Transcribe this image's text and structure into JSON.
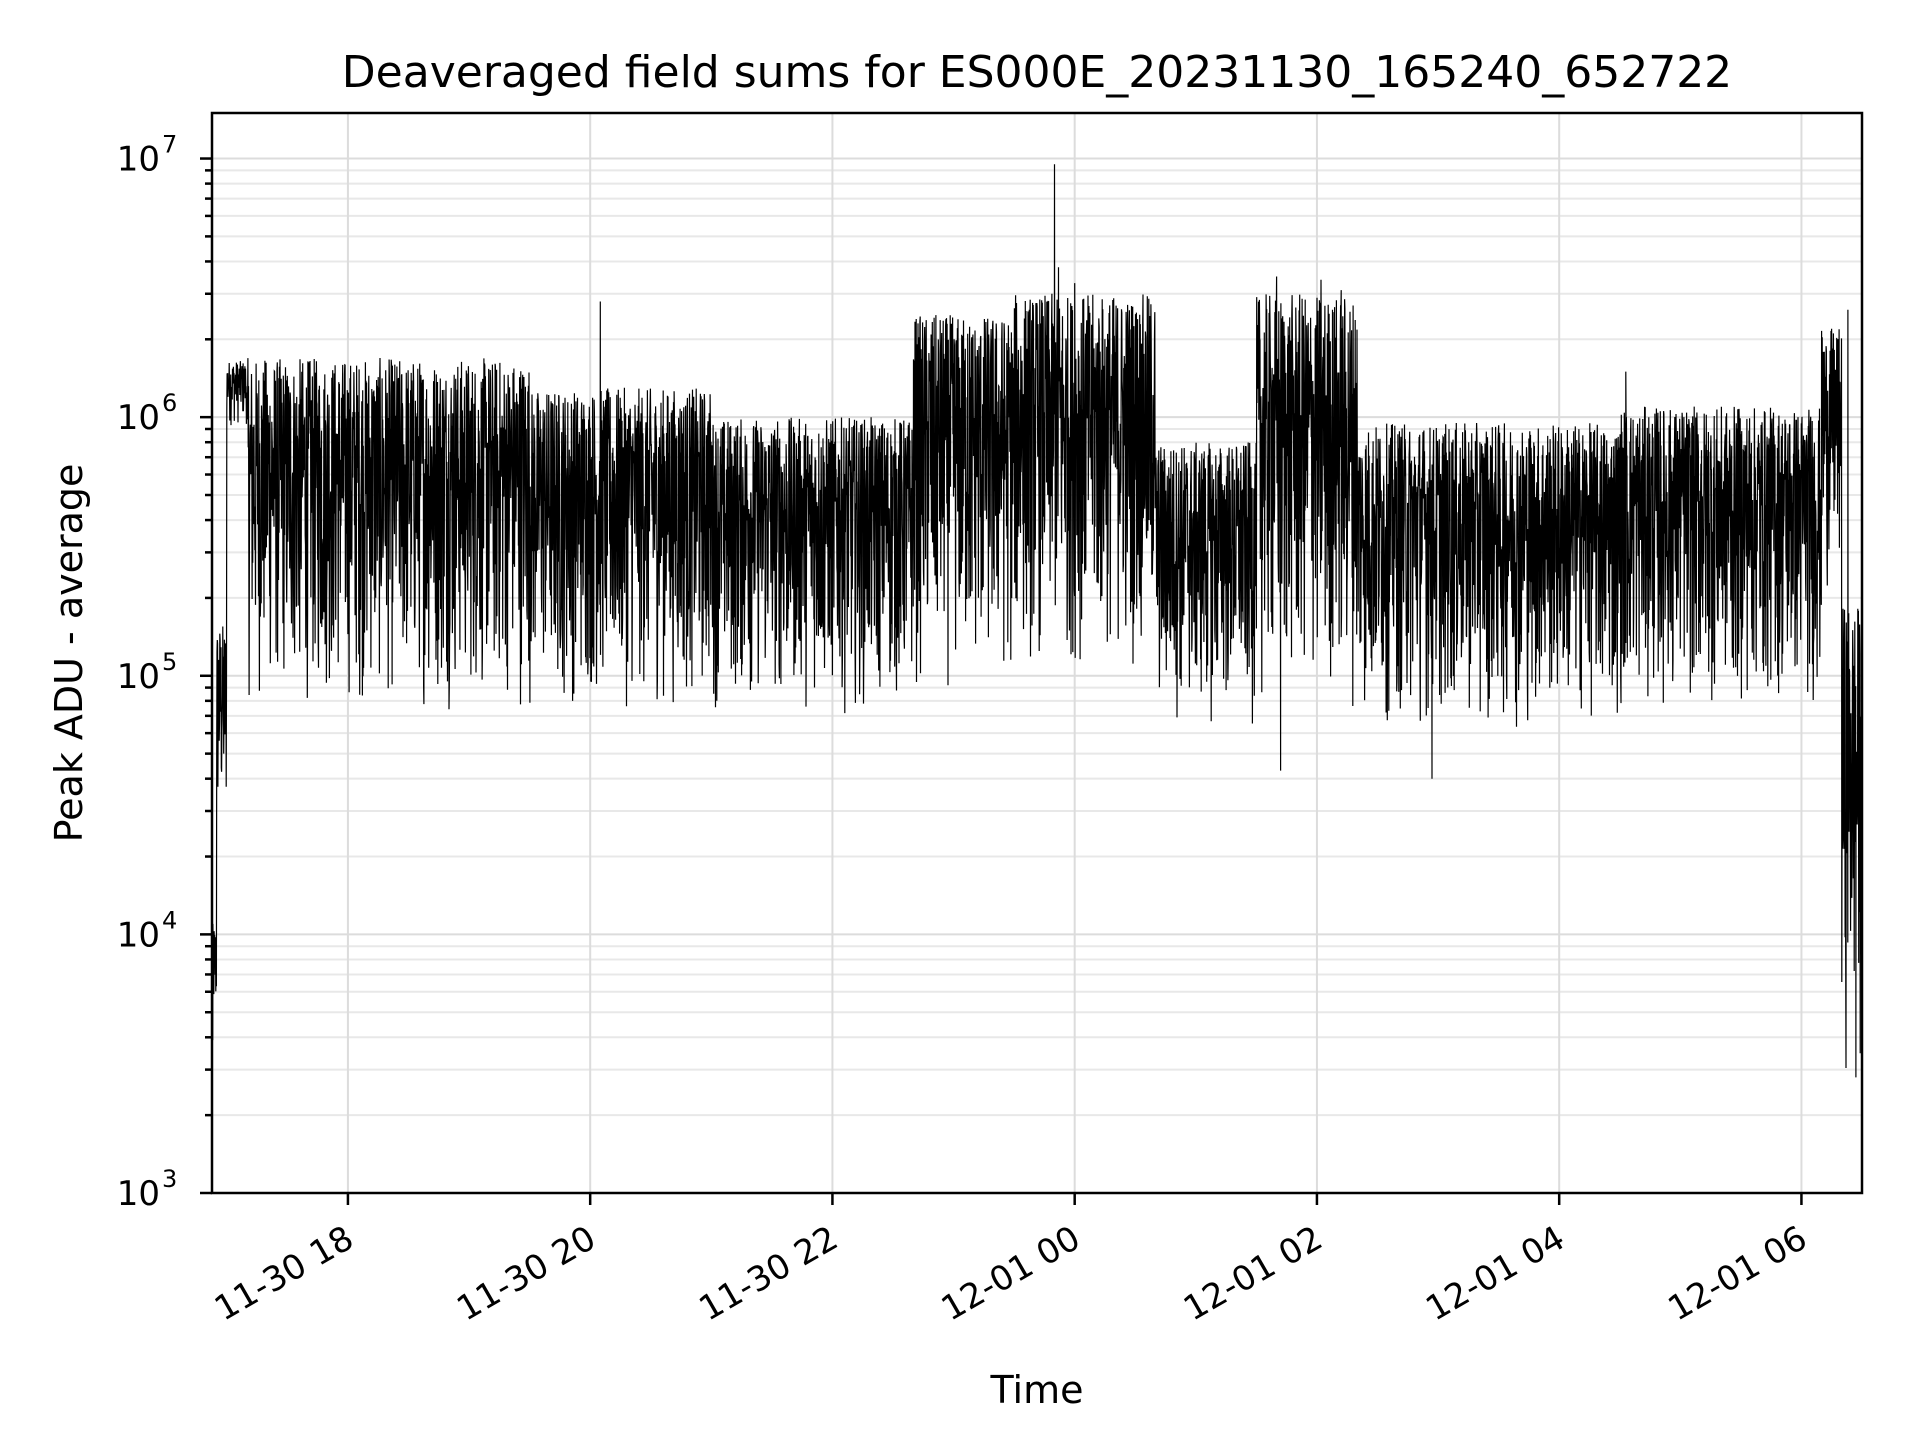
{
  "chart_data": {
    "type": "line",
    "title": "Deaveraged field sums for ES000E_20231130_165240_652722",
    "xlabel": "Time",
    "ylabel": "Peak ADU - average",
    "yscale": "log",
    "ylim": [
      1000,
      15000000
    ],
    "xlim": [
      "2023-11-30 16:52:40",
      "2023-12-01 06:30:00"
    ],
    "grid": true,
    "x_ticks": [
      {
        "t": "2023-11-30 18:00",
        "label": "11-30 18"
      },
      {
        "t": "2023-11-30 20:00",
        "label": "11-30 20"
      },
      {
        "t": "2023-11-30 22:00",
        "label": "11-30 22"
      },
      {
        "t": "2023-12-01 00:00",
        "label": "12-01 00"
      },
      {
        "t": "2023-12-01 02:00",
        "label": "12-01 02"
      },
      {
        "t": "2023-12-01 04:00",
        "label": "12-01 04"
      },
      {
        "t": "2023-12-01 06:00",
        "label": "12-01 06"
      }
    ],
    "y_ticks": [
      {
        "value": 1000,
        "base": "10",
        "exp": "3"
      },
      {
        "value": 10000,
        "base": "10",
        "exp": "4"
      },
      {
        "value": 100000,
        "base": "10",
        "exp": "5"
      },
      {
        "value": 1000000,
        "base": "10",
        "exp": "6"
      },
      {
        "value": 10000000,
        "base": "10",
        "exp": "7"
      }
    ],
    "series": [
      {
        "color": "#000000",
        "segments": [
          {
            "start": "2023-11-30 16:52:40",
            "end": "2023-11-30 16:55:00",
            "low": 4000,
            "high": 11000
          },
          {
            "start": "2023-11-30 16:55:00",
            "end": "2023-11-30 17:00:00",
            "low": 20000,
            "high": 160000
          },
          {
            "start": "2023-11-30 17:00:00",
            "end": "2023-11-30 17:10:00",
            "low": 900000,
            "high": 1650000
          },
          {
            "start": "2023-11-30 17:10:00",
            "end": "2023-11-30 19:30:00",
            "low": 70000,
            "high": 1700000
          },
          {
            "start": "2023-11-30 19:30:00",
            "end": "2023-11-30 21:00:00",
            "low": 70000,
            "high": 1300000
          },
          {
            "start": "2023-11-30 21:00:00",
            "end": "2023-11-30 22:40:00",
            "low": 70000,
            "high": 1000000
          },
          {
            "start": "2023-11-30 22:40:00",
            "end": "2023-11-30 23:30:00",
            "low": 80000,
            "high": 2500000
          },
          {
            "start": "2023-11-30 23:30:00",
            "end": "2023-12-01 00:40:00",
            "low": 100000,
            "high": 3000000
          },
          {
            "start": "2023-12-01 00:40:00",
            "end": "2023-12-01 01:30:00",
            "low": 60000,
            "high": 800000
          },
          {
            "start": "2023-12-01 01:30:00",
            "end": "2023-12-01 02:20:00",
            "low": 70000,
            "high": 3000000
          },
          {
            "start": "2023-12-01 02:20:00",
            "end": "2023-12-01 04:30:00",
            "low": 60000,
            "high": 950000
          },
          {
            "start": "2023-12-01 04:30:00",
            "end": "2023-12-01 06:10:00",
            "low": 70000,
            "high": 1100000
          },
          {
            "start": "2023-12-01 06:10:00",
            "end": "2023-12-01 06:20:00",
            "low": 200000,
            "high": 2200000
          },
          {
            "start": "2023-12-01 06:20:00",
            "end": "2023-12-01 06:30:00",
            "low": 2800,
            "high": 190000
          }
        ],
        "spikes": [
          {
            "t": "2023-11-30 16:53:00",
            "value": 3900
          },
          {
            "t": "2023-11-30 20:05:00",
            "value": 2800000
          },
          {
            "t": "2023-11-30 23:07:00",
            "value": 2100000
          },
          {
            "t": "2023-11-30 23:50:00",
            "value": 9500000
          },
          {
            "t": "2023-11-30 23:52:00",
            "value": 3800000
          },
          {
            "t": "2023-12-01 00:00:00",
            "value": 3300000
          },
          {
            "t": "2023-12-01 01:40:00",
            "value": 3500000
          },
          {
            "t": "2023-12-01 01:42:00",
            "value": 43000
          },
          {
            "t": "2023-12-01 02:02:00",
            "value": 3400000
          },
          {
            "t": "2023-12-01 02:12:00",
            "value": 3100000
          },
          {
            "t": "2023-12-01 02:57:00",
            "value": 40000
          },
          {
            "t": "2023-12-01 04:33:00",
            "value": 1500000
          },
          {
            "t": "2023-12-01 06:23:00",
            "value": 2600000
          },
          {
            "t": "2023-12-01 06:27:00",
            "value": 2800
          }
        ]
      }
    ]
  }
}
